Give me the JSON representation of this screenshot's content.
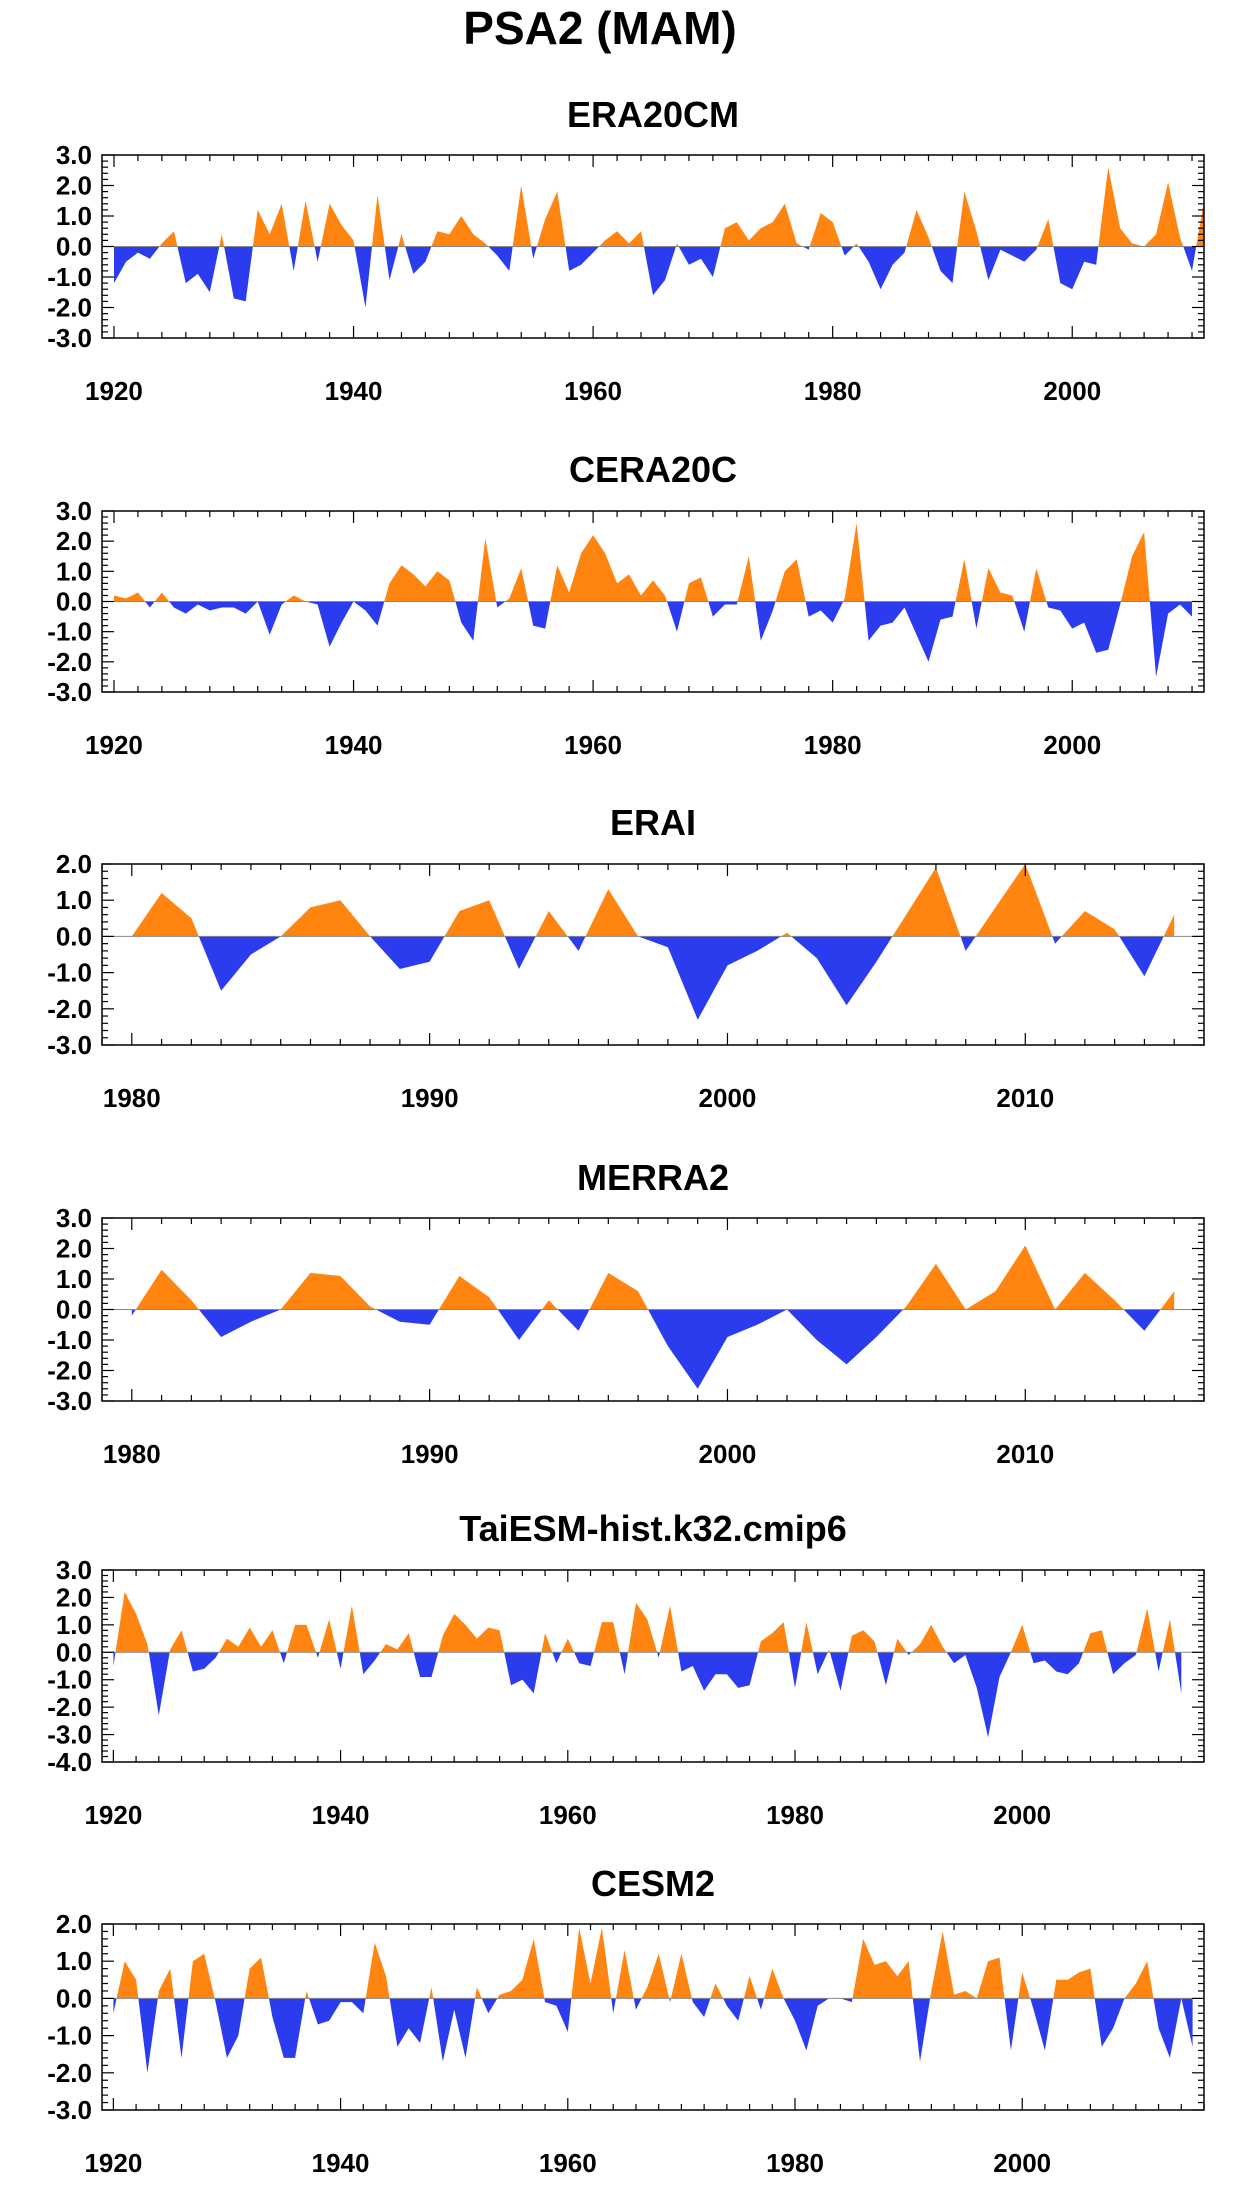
{
  "title": "PSA2 (MAM)",
  "colors": {
    "positive": "#ff8410",
    "negative": "#2b3cef"
  },
  "chart_data": [
    {
      "type": "area",
      "title": "ERA20CM",
      "xlim": [
        1919,
        2011
      ],
      "ylim": [
        -3.0,
        3.0
      ],
      "xticks": [
        1920,
        1940,
        1960,
        1980,
        2000
      ],
      "xtick_labels": [
        "1920",
        "1940",
        "1960",
        "1980",
        "2000"
      ],
      "yticks": [
        3.0,
        2.0,
        1.0,
        0.0,
        -1.0,
        -2.0,
        -3.0
      ],
      "ytick_labels": [
        "3.0",
        "2.0",
        "1.0",
        "0.0",
        "-1.0",
        "-2.0",
        "-3.0"
      ],
      "x_start": 1920,
      "values": [
        -1.2,
        -0.5,
        -0.2,
        -0.4,
        0.1,
        0.5,
        -1.2,
        -0.9,
        -1.5,
        0.4,
        -1.7,
        -1.8,
        1.2,
        0.4,
        1.4,
        -0.8,
        1.5,
        -0.5,
        1.4,
        0.7,
        0.2,
        -2.0,
        1.7,
        -1.1,
        0.4,
        -0.9,
        -0.5,
        0.5,
        0.4,
        1.0,
        0.4,
        0.1,
        -0.3,
        -0.8,
        2.0,
        -0.4,
        0.9,
        1.8,
        -0.8,
        -0.6,
        -0.2,
        0.2,
        0.5,
        0.1,
        0.5,
        -1.6,
        -1.1,
        0.1,
        -0.6,
        -0.4,
        -1.0,
        0.6,
        0.8,
        0.2,
        0.6,
        0.8,
        1.4,
        0.1,
        -0.1,
        1.1,
        0.8,
        -0.3,
        0.1,
        -0.5,
        -1.4,
        -0.6,
        -0.2,
        1.2,
        0.3,
        -0.8,
        -1.2,
        1.8,
        0.5,
        -1.1,
        -0.1,
        -0.3,
        -0.5,
        -0.1,
        0.9,
        -1.2,
        -1.4,
        -0.5,
        -0.6,
        2.6,
        0.6,
        0.1,
        0.0,
        0.4,
        2.1,
        0.3,
        -0.8,
        1.5
      ]
    },
    {
      "type": "area",
      "title": "CERA20C",
      "xlim": [
        1919,
        2011
      ],
      "ylim": [
        -3.0,
        3.0
      ],
      "xticks": [
        1920,
        1940,
        1960,
        1980,
        2000
      ],
      "xtick_labels": [
        "1920",
        "1940",
        "1960",
        "1980",
        "2000"
      ],
      "yticks": [
        3.0,
        2.0,
        1.0,
        0.0,
        -1.0,
        -2.0,
        -3.0
      ],
      "ytick_labels": [
        "3.0",
        "2.0",
        "1.0",
        "0.0",
        "-1.0",
        "-2.0",
        "-3.0"
      ],
      "x_start": 1920,
      "values": [
        0.2,
        0.1,
        0.3,
        -0.2,
        0.3,
        -0.2,
        -0.4,
        -0.1,
        -0.3,
        -0.2,
        -0.2,
        -0.4,
        0.0,
        -1.1,
        -0.1,
        0.2,
        0.0,
        -0.1,
        -1.5,
        -0.7,
        0.0,
        -0.3,
        -0.8,
        0.6,
        1.2,
        0.9,
        0.5,
        1.0,
        0.7,
        -0.7,
        -1.3,
        2.1,
        -0.2,
        0.1,
        1.1,
        -0.8,
        -0.9,
        1.2,
        0.3,
        1.6,
        2.2,
        1.6,
        0.6,
        0.9,
        0.2,
        0.7,
        0.2,
        -1.0,
        0.6,
        0.8,
        -0.5,
        -0.1,
        -0.1,
        1.5,
        -1.3,
        -0.3,
        1.0,
        1.4,
        -0.5,
        -0.3,
        -0.7,
        0.1,
        2.6,
        -1.3,
        -0.8,
        -0.7,
        -0.2,
        -1.1,
        -2.0,
        -0.6,
        -0.5,
        1.4,
        -0.9,
        1.1,
        0.3,
        0.2,
        -1.0,
        1.1,
        -0.2,
        -0.3,
        -0.9,
        -0.7,
        -1.7,
        -1.6,
        -0.1,
        1.5,
        2.3,
        -2.5,
        -0.4,
        -0.1,
        -0.5
      ]
    },
    {
      "type": "area",
      "title": "ERAI",
      "xlim": [
        1979,
        2016
      ],
      "ylim": [
        -3.0,
        2.0
      ],
      "xticks": [
        1980,
        1990,
        2000,
        2010
      ],
      "xtick_labels": [
        "1980",
        "1990",
        "2000",
        "2010"
      ],
      "yticks": [
        2.0,
        1.0,
        0.0,
        -1.0,
        -2.0,
        -3.0
      ],
      "ytick_labels": [
        "2.0",
        "1.0",
        "0.0",
        "-1.0",
        "-2.0",
        "-3.0"
      ],
      "x_start": 1980,
      "values": [
        0.0,
        1.2,
        0.5,
        -1.5,
        -0.5,
        0.0,
        0.8,
        1.0,
        0.0,
        -0.9,
        -0.7,
        0.7,
        1.0,
        -0.9,
        0.7,
        -0.4,
        1.3,
        0.0,
        -0.3,
        -2.3,
        -0.8,
        -0.4,
        0.1,
        -0.6,
        -1.9,
        -0.7,
        0.6,
        1.9,
        -0.4,
        0.8,
        2.0,
        -0.2,
        0.7,
        0.2,
        -1.1,
        0.6
      ]
    },
    {
      "type": "area",
      "title": "MERRA2",
      "xlim": [
        1979,
        2016
      ],
      "ylim": [
        -3.0,
        3.0
      ],
      "xticks": [
        1980,
        1990,
        2000,
        2010
      ],
      "xtick_labels": [
        "1980",
        "1990",
        "2000",
        "2010"
      ],
      "yticks": [
        3.0,
        2.0,
        1.0,
        0.0,
        -1.0,
        -2.0,
        -3.0
      ],
      "ytick_labels": [
        "3.0",
        "2.0",
        "1.0",
        "0.0",
        "-1.0",
        "-2.0",
        "-3.0"
      ],
      "x_start": 1980,
      "values": [
        -0.2,
        1.3,
        0.3,
        -0.9,
        -0.4,
        0.0,
        1.2,
        1.1,
        0.1,
        -0.4,
        -0.5,
        1.1,
        0.4,
        -1.0,
        0.3,
        -0.7,
        1.2,
        0.6,
        -1.2,
        -2.6,
        -0.9,
        -0.5,
        0.0,
        -1.0,
        -1.8,
        -0.9,
        0.1,
        1.5,
        0.0,
        0.6,
        2.1,
        0.0,
        1.2,
        0.3,
        -0.7,
        0.6
      ]
    },
    {
      "type": "area",
      "title": "TaiESM-hist.k32.cmip6",
      "xlim": [
        1919,
        2016
      ],
      "ylim": [
        -4.0,
        3.0
      ],
      "xticks": [
        1920,
        1940,
        1960,
        1980,
        2000
      ],
      "xtick_labels": [
        "1920",
        "1940",
        "1960",
        "1980",
        "2000"
      ],
      "yticks": [
        3.0,
        2.0,
        1.0,
        0.0,
        -1.0,
        -2.0,
        -3.0,
        -4.0
      ],
      "ytick_labels": [
        "3.0",
        "2.0",
        "1.0",
        "0.0",
        "-1.0",
        "-2.0",
        "-3.0",
        "-4.0"
      ],
      "x_start": 1920,
      "values": [
        -0.5,
        2.2,
        1.4,
        0.3,
        -2.3,
        0.1,
        0.8,
        -0.7,
        -0.6,
        -0.2,
        0.5,
        0.2,
        0.9,
        0.2,
        0.8,
        -0.4,
        1.0,
        1.0,
        -0.2,
        1.2,
        -0.6,
        1.7,
        -0.8,
        -0.3,
        0.3,
        0.1,
        0.7,
        -0.9,
        -0.9,
        0.6,
        1.4,
        1.0,
        0.5,
        0.9,
        0.8,
        -1.2,
        -1.0,
        -1.5,
        0.7,
        -0.4,
        0.5,
        -0.4,
        -0.5,
        1.1,
        1.1,
        -0.8,
        1.8,
        1.2,
        -0.2,
        1.7,
        -0.7,
        -0.5,
        -1.4,
        -0.8,
        -0.8,
        -1.3,
        -1.2,
        0.4,
        0.7,
        1.1,
        -1.3,
        1.1,
        -0.8,
        0.1,
        -1.4,
        0.6,
        0.8,
        0.4,
        -1.2,
        0.5,
        -0.1,
        0.3,
        1.0,
        0.2,
        -0.4,
        -0.1,
        -1.3,
        -3.1,
        -0.9,
        0.0,
        1.0,
        -0.4,
        -0.3,
        -0.7,
        -0.8,
        -0.4,
        0.7,
        0.8,
        -0.8,
        -0.4,
        -0.1,
        1.6,
        -0.7,
        1.2,
        -1.5
      ]
    },
    {
      "type": "area",
      "title": "CESM2",
      "xlim": [
        1919,
        2016
      ],
      "ylim": [
        -3.0,
        2.0
      ],
      "xticks": [
        1920,
        1940,
        1960,
        1980,
        2000
      ],
      "xtick_labels": [
        "1920",
        "1940",
        "1960",
        "1980",
        "2000"
      ],
      "yticks": [
        2.0,
        1.0,
        0.0,
        -1.0,
        -2.0,
        -3.0
      ],
      "ytick_labels": [
        "2.0",
        "1.0",
        "0.0",
        "-1.0",
        "-2.0",
        "-3.0"
      ],
      "x_start": 1920,
      "values": [
        -0.4,
        1.0,
        0.5,
        -2.0,
        0.2,
        0.8,
        -1.6,
        1.0,
        1.2,
        -0.1,
        -1.6,
        -1.0,
        0.8,
        1.1,
        -0.5,
        -1.6,
        -1.6,
        0.2,
        -0.7,
        -0.6,
        -0.1,
        -0.1,
        -0.4,
        1.5,
        0.6,
        -1.3,
        -0.8,
        -1.2,
        0.3,
        -1.7,
        -0.3,
        -1.6,
        0.3,
        -0.4,
        0.1,
        0.2,
        0.5,
        1.6,
        -0.1,
        -0.2,
        -0.9,
        1.9,
        0.4,
        1.9,
        -0.4,
        1.3,
        -0.3,
        0.3,
        1.2,
        -0.1,
        1.2,
        -0.1,
        -0.5,
        0.4,
        -0.2,
        -0.6,
        0.6,
        -0.3,
        0.8,
        0.0,
        -0.6,
        -1.4,
        -0.2,
        0.0,
        0.0,
        -0.1,
        1.6,
        0.9,
        1.0,
        0.6,
        1.0,
        -1.7,
        0.2,
        1.8,
        0.1,
        0.2,
        0.0,
        1.0,
        1.1,
        -1.4,
        0.7,
        -0.3,
        -1.4,
        0.5,
        0.5,
        0.7,
        0.8,
        -1.3,
        -0.8,
        0.0,
        0.4,
        1.0,
        -0.8,
        -1.6,
        0.0,
        -1.3
      ]
    }
  ]
}
